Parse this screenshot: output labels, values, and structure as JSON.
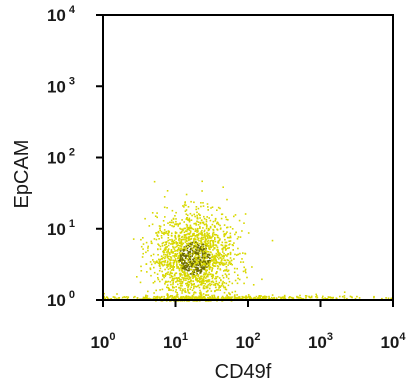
{
  "chart_data": {
    "type": "scatter",
    "title": "",
    "xlabel": "CD49f",
    "ylabel": "EpCAM",
    "x_scale": "log",
    "y_scale": "log",
    "xlim": [
      1,
      10000
    ],
    "ylim": [
      1,
      10000
    ],
    "grid": false,
    "legend": "none",
    "x_ticks": [
      {
        "base": "10",
        "exp": "0"
      },
      {
        "base": "10",
        "exp": "1"
      },
      {
        "base": "10",
        "exp": "2"
      },
      {
        "base": "10",
        "exp": "3"
      },
      {
        "base": "10",
        "exp": "4"
      }
    ],
    "y_ticks": [
      {
        "base": "10",
        "exp": "0"
      },
      {
        "base": "10",
        "exp": "1"
      },
      {
        "base": "10",
        "exp": "2"
      },
      {
        "base": "10",
        "exp": "3"
      },
      {
        "base": "10",
        "exp": "4"
      }
    ],
    "series": [
      {
        "color": "#d8d800",
        "density_color": "#6b6b00",
        "clusters": [
          {
            "center_x": 18,
            "center_y": 4,
            "spread_x_decades": 0.28,
            "spread_y_decades": 0.3,
            "count": 1800
          },
          {
            "center_x": 40,
            "center_y": 1.05,
            "spread_x_decades": 0.9,
            "spread_y_decades": 0.02,
            "count": 500
          }
        ]
      }
    ]
  }
}
